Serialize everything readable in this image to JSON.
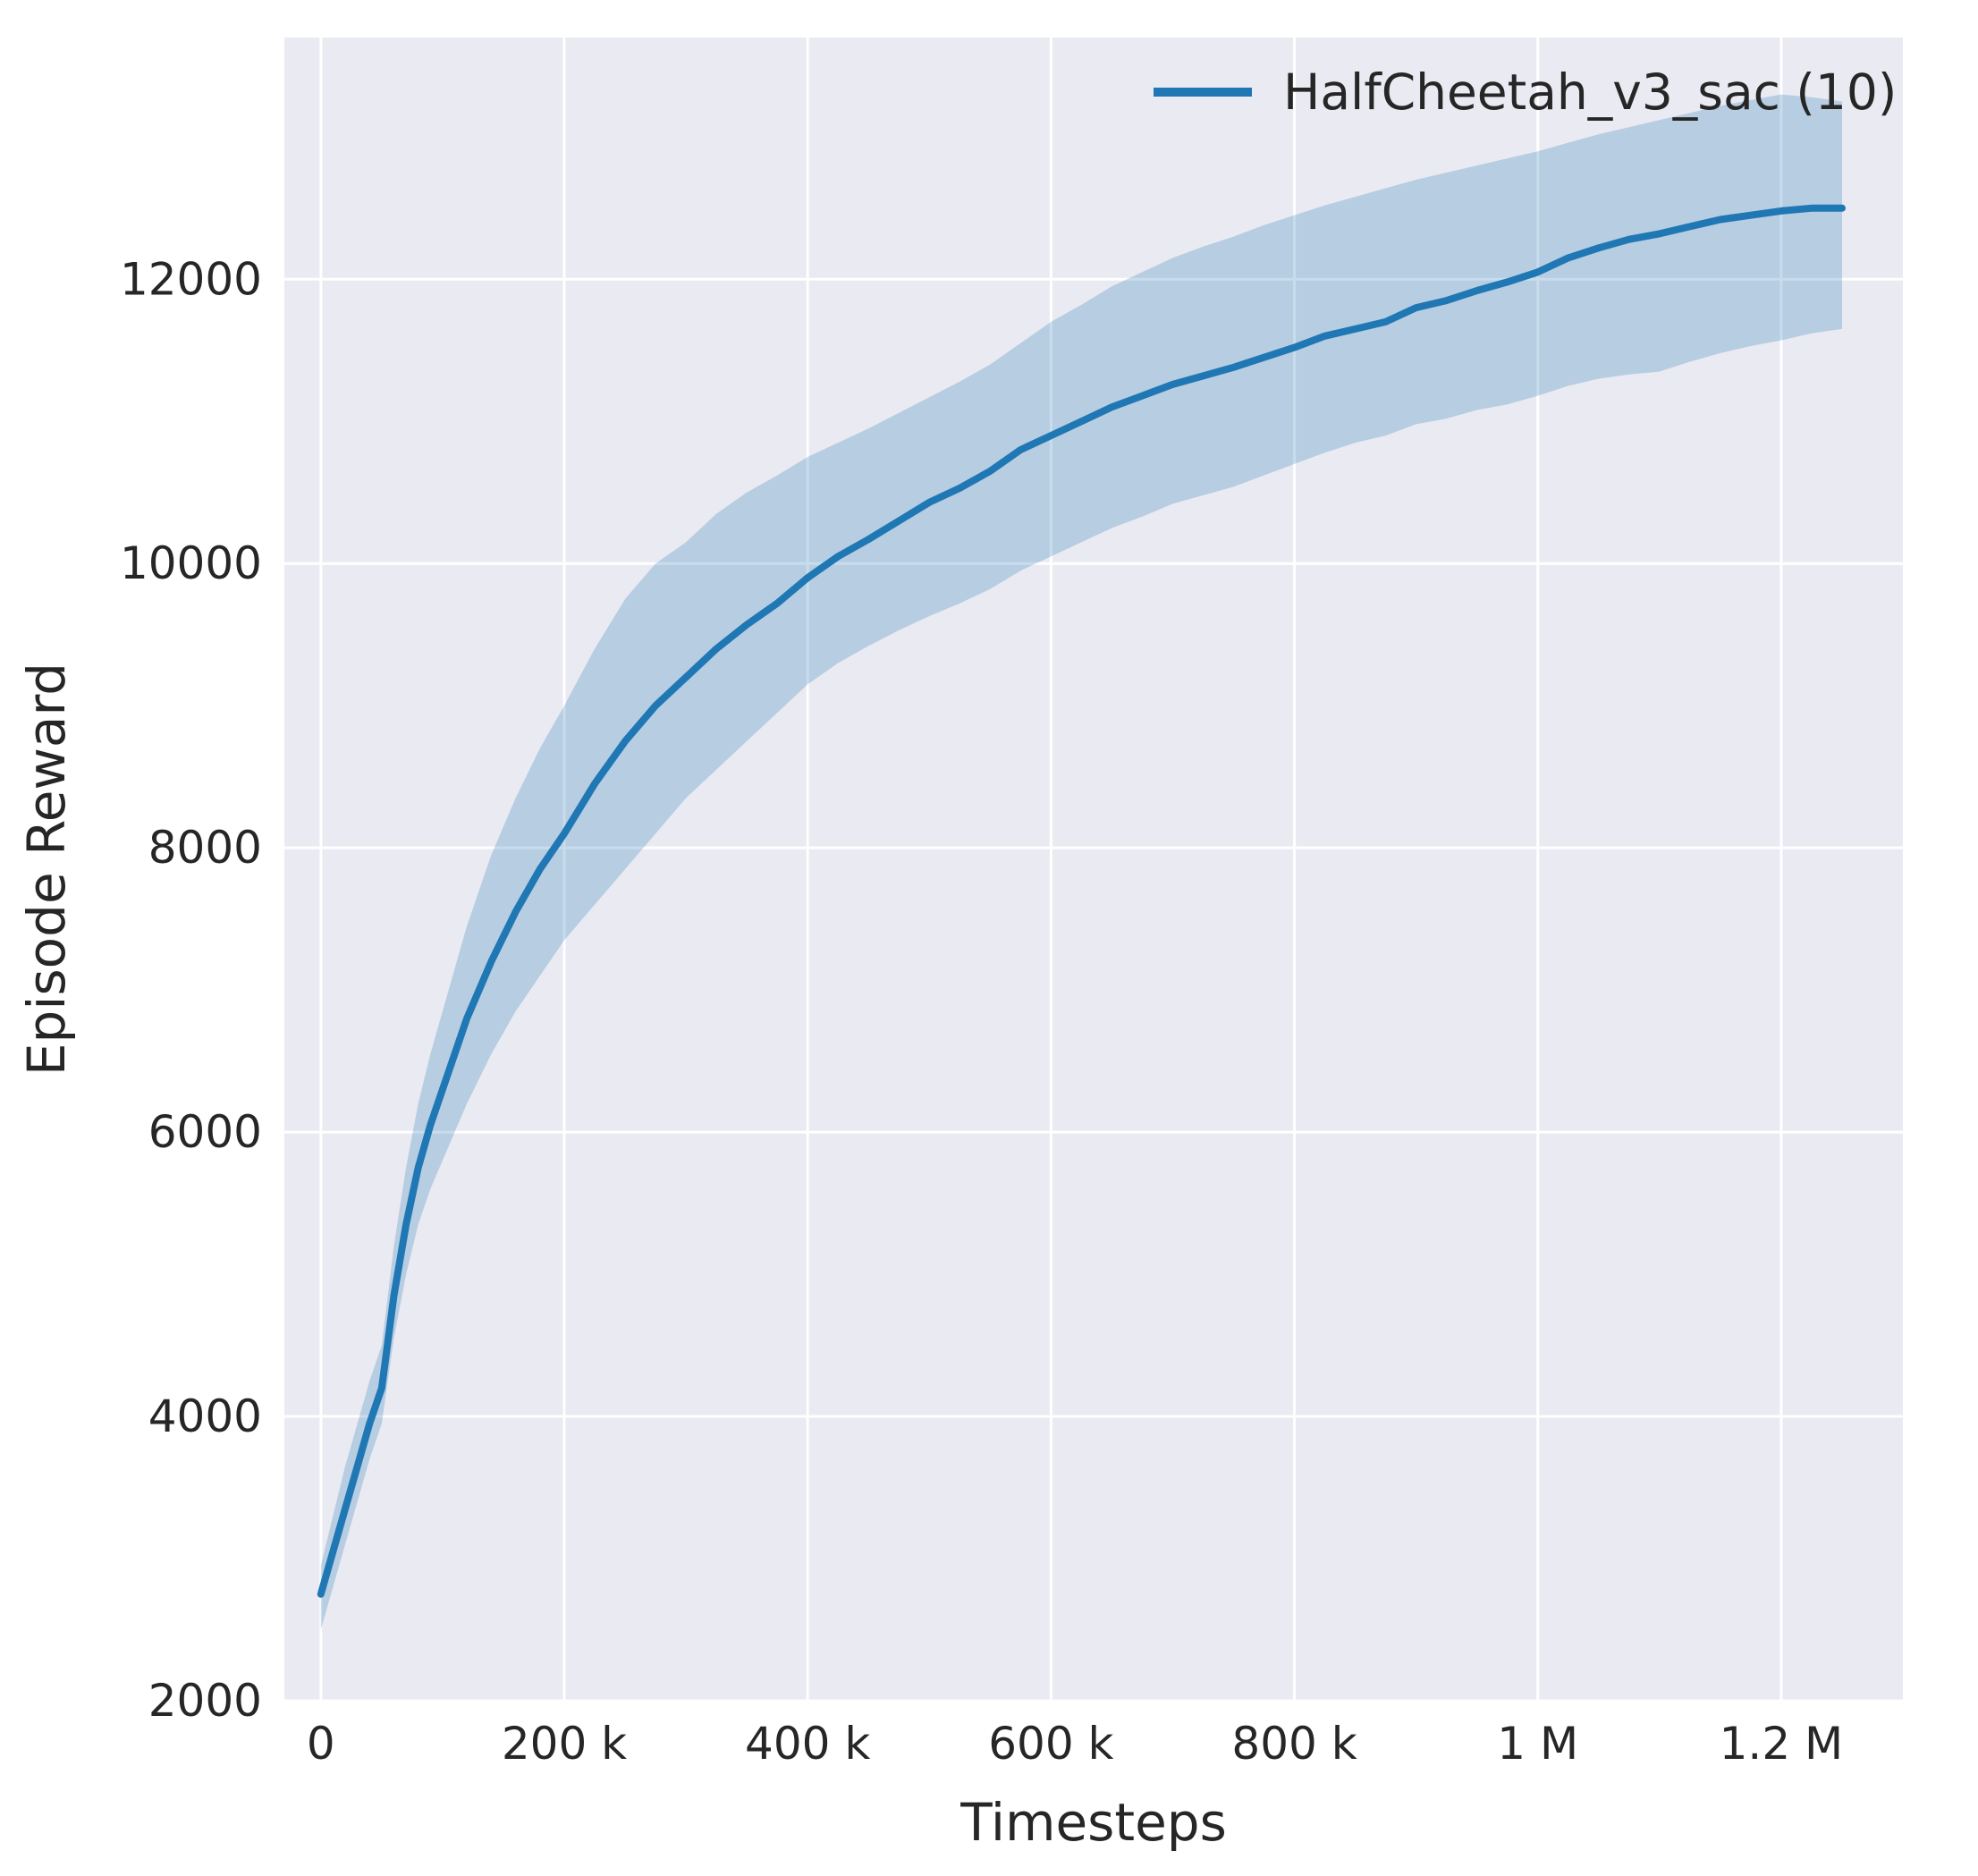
{
  "figure": {
    "accent_color": "#1f77b4",
    "plot_background": "#eaeaf2",
    "grid_color": "#ffffff",
    "text_color": "#262626",
    "band_opacity": 0.25
  },
  "legend": {
    "entries": [
      {
        "label": "HalfCheetah_v3_sac (10)",
        "color": "#1f77b4"
      }
    ],
    "position": "upper right",
    "frame": false
  },
  "chart_data": {
    "type": "line",
    "title": "",
    "xlabel": "Timesteps",
    "ylabel": "Episode Reward",
    "xlim": [
      -30000,
      1300000
    ],
    "ylim": [
      2000,
      13700
    ],
    "grid": true,
    "legend_position": "upper right",
    "x_ticks": [
      0,
      200000,
      400000,
      600000,
      800000,
      1000000,
      1200000
    ],
    "x_tick_labels": [
      "0",
      "200 k",
      "400 k",
      "600 k",
      "800 k",
      "1 M",
      "1.2 M"
    ],
    "y_ticks": [
      2000,
      4000,
      6000,
      8000,
      10000,
      12000
    ],
    "y_tick_labels": [
      "2000",
      "4000",
      "6000",
      "8000",
      "10000",
      "12000"
    ],
    "series": [
      {
        "name": "HalfCheetah_v3_sac (10)",
        "color": "#1f77b4",
        "band": true,
        "x": [
          0,
          10000,
          20000,
          30000,
          40000,
          50000,
          60000,
          70000,
          80000,
          90000,
          100000,
          120000,
          140000,
          160000,
          180000,
          200000,
          225000,
          250000,
          275000,
          300000,
          325000,
          350000,
          375000,
          400000,
          425000,
          450000,
          475000,
          500000,
          525000,
          550000,
          575000,
          600000,
          625000,
          650000,
          675000,
          700000,
          725000,
          750000,
          775000,
          800000,
          825000,
          850000,
          875000,
          900000,
          925000,
          950000,
          975000,
          1000000,
          1025000,
          1050000,
          1075000,
          1100000,
          1125000,
          1150000,
          1175000,
          1200000,
          1225000,
          1250000
        ],
        "mean": [
          2750,
          3050,
          3350,
          3650,
          3950,
          4200,
          4850,
          5350,
          5750,
          6050,
          6300,
          6800,
          7200,
          7550,
          7850,
          8100,
          8450,
          8750,
          9000,
          9200,
          9400,
          9570,
          9720,
          9900,
          10050,
          10170,
          10300,
          10430,
          10530,
          10650,
          10800,
          10900,
          11000,
          11100,
          11180,
          11260,
          11320,
          11380,
          11450,
          11520,
          11600,
          11650,
          11700,
          11800,
          11850,
          11920,
          11980,
          12050,
          12150,
          12220,
          12280,
          12320,
          12370,
          12420,
          12450,
          12480,
          12500,
          12500
        ],
        "lower": [
          2500,
          2800,
          3100,
          3400,
          3700,
          3950,
          4550,
          5000,
          5350,
          5600,
          5800,
          6200,
          6550,
          6850,
          7100,
          7350,
          7600,
          7850,
          8100,
          8350,
          8550,
          8750,
          8950,
          9150,
          9300,
          9420,
          9530,
          9630,
          9720,
          9820,
          9950,
          10050,
          10150,
          10250,
          10330,
          10420,
          10480,
          10540,
          10620,
          10700,
          10780,
          10850,
          10900,
          10980,
          11020,
          11080,
          11120,
          11180,
          11250,
          11300,
          11330,
          11350,
          11420,
          11480,
          11530,
          11570,
          11620,
          11650
        ],
        "upper": [
          2950,
          3300,
          3650,
          3950,
          4250,
          4500,
          5200,
          5750,
          6200,
          6550,
          6850,
          7450,
          7950,
          8350,
          8700,
          9000,
          9400,
          9750,
          10000,
          10150,
          10350,
          10500,
          10620,
          10750,
          10850,
          10950,
          11060,
          11170,
          11280,
          11400,
          11550,
          11700,
          11820,
          11950,
          12050,
          12150,
          12230,
          12300,
          12380,
          12450,
          12520,
          12580,
          12640,
          12700,
          12750,
          12800,
          12850,
          12900,
          12960,
          13020,
          13070,
          13120,
          13170,
          13220,
          13260,
          13300,
          13280,
          13250
        ]
      }
    ]
  }
}
